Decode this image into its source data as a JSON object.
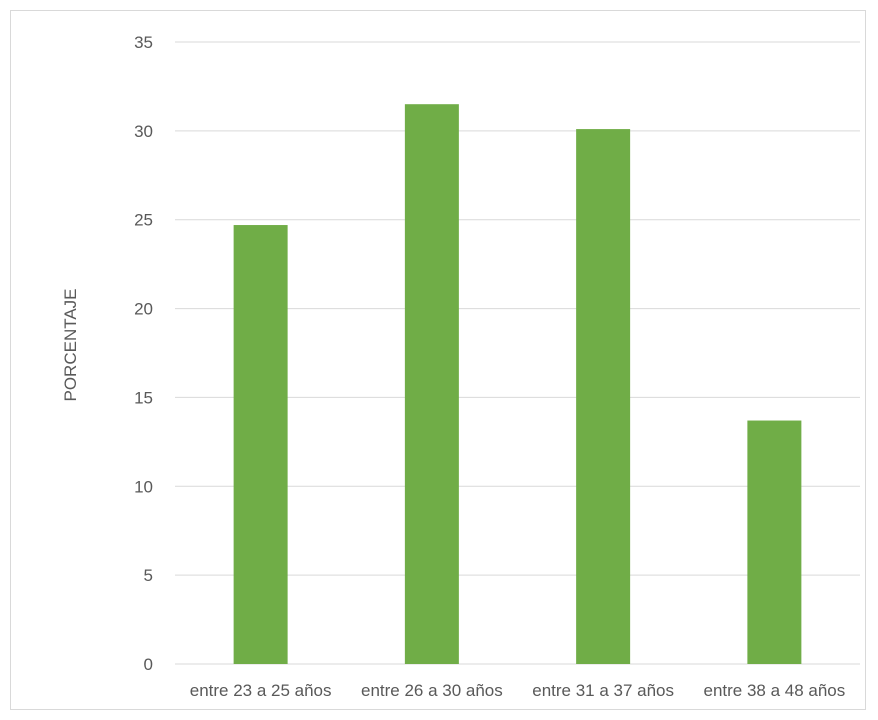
{
  "chart_data": {
    "type": "bar",
    "title": "",
    "xlabel": "",
    "ylabel": "PORCENTAJE",
    "categories": [
      "entre 23 a 25 años",
      "entre 26 a 30 años",
      "entre 31 a 37 años",
      "entre 38 a 48 años"
    ],
    "values": [
      24.7,
      31.5,
      30.1,
      13.7
    ],
    "ylim": [
      0,
      35
    ],
    "yticks": [
      0,
      5,
      10,
      15,
      20,
      25,
      30,
      35
    ],
    "grid": true,
    "legend": "none",
    "bar_color": "#70ad47",
    "grid_color": "#d9d9d9",
    "text_color": "#595959"
  }
}
